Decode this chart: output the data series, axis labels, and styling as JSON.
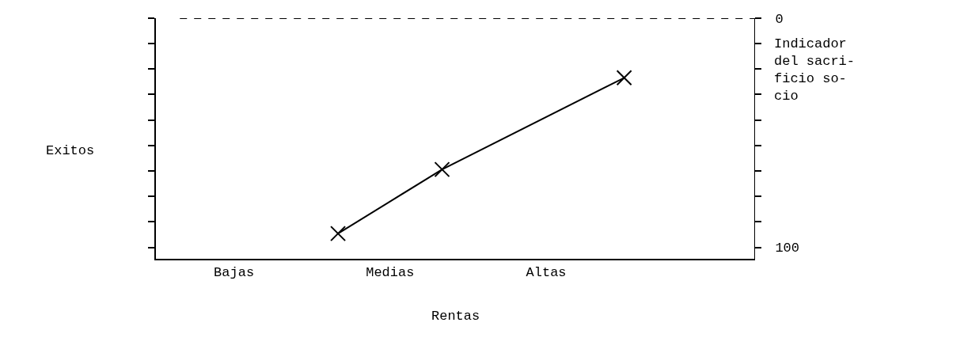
{
  "chart_data": {
    "type": "line",
    "xlabel": "Rentas",
    "ylabel": "Exitos",
    "y2label": "Indicador\ndel sacri-\nficio so-\ncio",
    "categories": [
      null,
      null,
      null,
      "Bajas",
      null,
      null,
      null,
      null,
      null,
      "Medias",
      null,
      null,
      null,
      null,
      null,
      "Altas",
      null,
      null,
      null,
      null,
      null,
      null,
      null,
      null
    ],
    "y2lim": [
      105,
      0
    ],
    "y2ticks": [
      0,
      {
        "value": 11.1,
        "label": null
      },
      {
        "value": 22.2,
        "label": null
      },
      {
        "value": 33.3,
        "label": null
      },
      {
        "value": 44.4,
        "label": null
      },
      {
        "value": 55.6,
        "label": null
      },
      {
        "value": 66.7,
        "label": null
      },
      {
        "value": 77.8,
        "label": null
      },
      {
        "value": 88.9,
        "label": null
      },
      100
    ],
    "series": [
      {
        "axis": "y2",
        "color": "#000000",
        "values": [
          null,
          null,
          null,
          null,
          null,
          null,
          null,
          94,
          null,
          null,
          null,
          66,
          null,
          null,
          null,
          null,
          null,
          null,
          26,
          null,
          null,
          null,
          null,
          null
        ]
      }
    ],
    "marker": "cross",
    "line_style": "solid",
    "ref_lines": [
      {
        "axis": "y2",
        "value": 0,
        "color": "#000000",
        "line_style": "dashed"
      }
    ]
  }
}
